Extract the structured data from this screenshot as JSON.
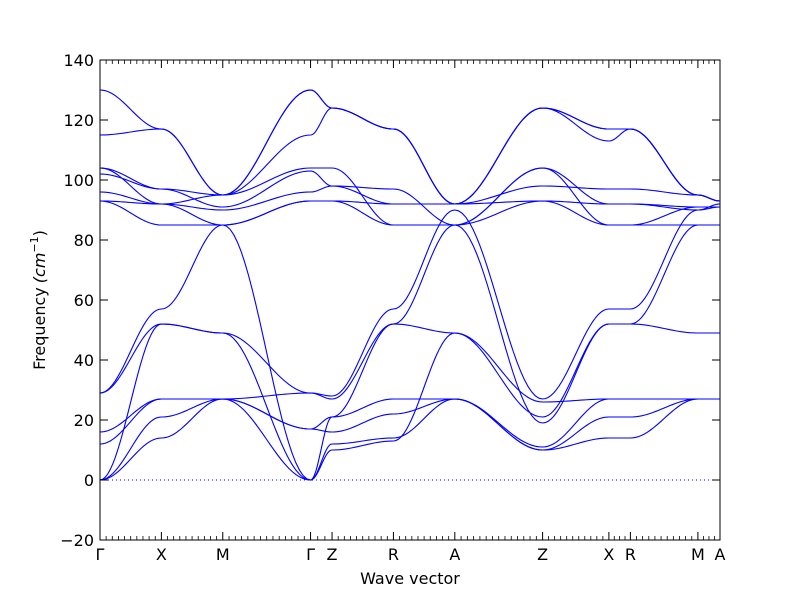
{
  "chart_data": {
    "type": "line",
    "xlabel": "Wave vector",
    "ylabel": "Frequency",
    "ylabel_unit": "(cm",
    "ylabel_exp": "−1",
    "ylabel_close": ")",
    "ylim": [
      -20,
      140
    ],
    "yticks": [
      -20,
      0,
      20,
      40,
      60,
      80,
      100,
      120,
      140
    ],
    "xlim": [
      0,
      10.1
    ],
    "kpoints": [
      {
        "label": "Γ",
        "x": 0.0
      },
      {
        "label": "X",
        "x": 1.0
      },
      {
        "label": "M",
        "x": 2.0
      },
      {
        "label": "Γ",
        "x": 3.43
      },
      {
        "label": "Z",
        "x": 3.78
      },
      {
        "label": "R",
        "x": 4.78
      },
      {
        "label": "A",
        "x": 5.78
      },
      {
        "label": "Z",
        "x": 7.21
      },
      {
        "label": "X",
        "x": 8.29
      },
      {
        "label": "R",
        "x": 8.64
      },
      {
        "label": "M",
        "x": 9.74
      },
      {
        "label": "A",
        "x": 10.1
      }
    ],
    "line_color": "#0000ff",
    "zero_line_color": "#0000ff",
    "series": [
      {
        "points": [
          [
            0,
            0
          ],
          [
            1,
            14
          ],
          [
            2,
            27
          ],
          [
            3.43,
            17
          ],
          [
            3.78,
            21
          ],
          [
            4.78,
            27
          ],
          [
            5.78,
            27
          ],
          [
            7.21,
            10
          ],
          [
            8.29,
            14
          ],
          [
            8.64,
            14
          ],
          [
            9.74,
            27
          ],
          [
            10.1,
            27
          ]
        ]
      },
      {
        "points": [
          [
            0,
            0
          ],
          [
            1,
            21
          ],
          [
            2,
            27
          ],
          [
            3.43,
            17
          ],
          [
            3.78,
            16
          ],
          [
            4.78,
            22
          ],
          [
            5.78,
            27
          ],
          [
            7.21,
            10
          ],
          [
            8.29,
            21
          ],
          [
            8.64,
            21
          ],
          [
            9.74,
            27
          ],
          [
            10.1,
            27
          ]
        ]
      },
      {
        "points": [
          [
            0,
            0
          ],
          [
            1,
            52
          ],
          [
            2,
            49
          ],
          [
            3.43,
            0
          ],
          [
            3.78,
            10
          ],
          [
            4.78,
            13
          ],
          [
            5.78,
            49
          ],
          [
            7.21,
            21
          ],
          [
            8.29,
            52
          ],
          [
            8.64,
            52
          ],
          [
            9.74,
            49
          ],
          [
            10.1,
            49
          ]
        ]
      },
      {
        "points": [
          [
            0,
            12
          ],
          [
            1,
            27
          ],
          [
            2,
            27
          ],
          [
            3.43,
            0
          ],
          [
            3.78,
            12
          ],
          [
            4.78,
            14
          ],
          [
            5.78,
            27
          ],
          [
            7.21,
            11
          ],
          [
            8.29,
            27
          ],
          [
            8.64,
            27
          ],
          [
            9.74,
            27
          ],
          [
            10.1,
            27
          ]
        ]
      },
      {
        "points": [
          [
            0,
            16
          ],
          [
            1,
            27
          ],
          [
            2,
            27
          ],
          [
            3.43,
            29
          ],
          [
            3.78,
            27
          ],
          [
            4.78,
            52
          ],
          [
            5.78,
            49
          ],
          [
            7.21,
            26
          ],
          [
            8.29,
            27
          ],
          [
            8.64,
            27
          ],
          [
            9.74,
            27
          ],
          [
            10.1,
            27
          ]
        ]
      },
      {
        "points": [
          [
            0,
            29
          ],
          [
            1,
            52
          ],
          [
            2,
            49
          ],
          [
            3.43,
            29
          ],
          [
            3.78,
            28
          ],
          [
            4.78,
            57
          ],
          [
            5.78,
            90
          ],
          [
            7.21,
            27
          ],
          [
            8.29,
            57
          ],
          [
            8.64,
            57
          ],
          [
            9.74,
            90
          ],
          [
            10.1,
            91
          ]
        ]
      },
      {
        "points": [
          [
            0,
            29
          ],
          [
            1,
            57
          ],
          [
            2,
            85
          ],
          [
            3.43,
            0
          ],
          [
            3.78,
            21
          ],
          [
            4.78,
            52
          ],
          [
            5.78,
            85
          ],
          [
            7.21,
            19
          ],
          [
            8.29,
            52
          ],
          [
            8.64,
            52
          ],
          [
            9.74,
            85
          ],
          [
            10.1,
            85
          ]
        ]
      },
      {
        "points": [
          [
            0,
            93
          ],
          [
            1,
            92
          ],
          [
            2,
            85
          ],
          [
            3.43,
            93
          ],
          [
            3.78,
            93
          ],
          [
            4.78,
            85
          ],
          [
            5.78,
            85
          ],
          [
            7.21,
            93
          ],
          [
            8.29,
            85
          ],
          [
            8.64,
            85
          ],
          [
            9.74,
            85
          ],
          [
            10.1,
            85
          ]
        ]
      },
      {
        "points": [
          [
            0,
            93
          ],
          [
            1,
            85
          ],
          [
            2,
            85
          ],
          [
            3.43,
            93
          ],
          [
            3.78,
            93
          ],
          [
            4.78,
            92
          ],
          [
            5.78,
            92
          ],
          [
            7.21,
            93
          ],
          [
            8.29,
            92
          ],
          [
            8.64,
            92
          ],
          [
            9.74,
            90
          ],
          [
            10.1,
            92
          ]
        ]
      },
      {
        "points": [
          [
            0,
            96
          ],
          [
            1,
            92
          ],
          [
            2,
            90
          ],
          [
            3.43,
            96
          ],
          [
            3.78,
            98
          ],
          [
            4.78,
            92
          ],
          [
            5.78,
            92
          ],
          [
            7.21,
            98
          ],
          [
            8.29,
            97
          ],
          [
            8.64,
            97
          ],
          [
            9.74,
            95
          ],
          [
            10.1,
            93
          ]
        ]
      },
      {
        "points": [
          [
            0,
            102
          ],
          [
            1,
            97
          ],
          [
            2,
            91
          ],
          [
            3.43,
            103
          ],
          [
            3.78,
            98
          ],
          [
            4.78,
            97
          ],
          [
            5.78,
            85
          ],
          [
            7.21,
            104
          ],
          [
            8.29,
            92
          ],
          [
            8.64,
            92
          ],
          [
            9.74,
            91
          ],
          [
            10.1,
            91
          ]
        ]
      },
      {
        "points": [
          [
            0,
            104
          ],
          [
            1,
            92
          ],
          [
            2,
            95
          ],
          [
            3.43,
            104
          ],
          [
            3.78,
            104
          ],
          [
            4.78,
            85
          ],
          [
            5.78,
            85
          ],
          [
            7.21,
            104
          ],
          [
            8.29,
            85
          ],
          [
            8.64,
            85
          ],
          [
            9.74,
            91
          ],
          [
            10.1,
            91
          ]
        ]
      },
      {
        "points": [
          [
            0,
            104
          ],
          [
            1,
            97
          ],
          [
            2,
            95
          ],
          [
            3.43,
            115
          ],
          [
            3.78,
            124
          ],
          [
            4.78,
            117
          ],
          [
            5.78,
            92
          ],
          [
            7.21,
            124
          ],
          [
            8.29,
            117
          ],
          [
            8.64,
            117
          ],
          [
            9.74,
            95
          ],
          [
            10.1,
            93
          ]
        ]
      },
      {
        "points": [
          [
            0,
            115
          ],
          [
            1,
            117
          ],
          [
            2,
            95
          ],
          [
            3.43,
            130
          ],
          [
            3.78,
            124
          ],
          [
            4.78,
            117
          ],
          [
            5.78,
            92
          ],
          [
            7.21,
            124
          ],
          [
            8.29,
            117
          ],
          [
            8.64,
            117
          ],
          [
            9.74,
            95
          ],
          [
            10.1,
            93
          ]
        ]
      },
      {
        "points": [
          [
            0,
            130
          ],
          [
            1,
            117
          ],
          [
            2,
            95
          ],
          [
            3.43,
            130
          ],
          [
            3.78,
            124
          ],
          [
            4.78,
            117
          ],
          [
            5.78,
            92
          ],
          [
            7.21,
            124
          ],
          [
            8.29,
            113
          ],
          [
            8.64,
            117
          ],
          [
            9.74,
            95
          ],
          [
            10.1,
            93
          ]
        ]
      }
    ]
  }
}
